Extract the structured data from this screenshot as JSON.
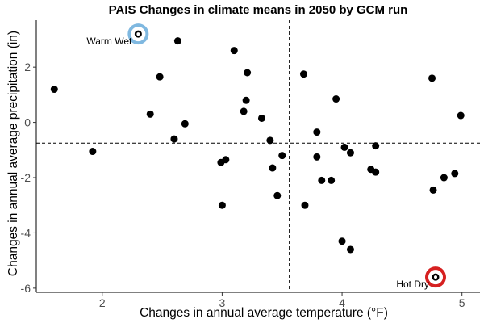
{
  "chart_data": {
    "type": "scatter",
    "title": "PAIS Changes in climate means in 2050 by GCM run",
    "xlabel": "Changes in annual average temperature (°F)",
    "ylabel": "Changes in annual average precipitation (in)",
    "xlim": [
      1.45,
      5.15
    ],
    "ylim": [
      -6.15,
      3.7
    ],
    "xticks": [
      2,
      3,
      4,
      5
    ],
    "yticks": [
      -6,
      -4,
      -2,
      0,
      2
    ],
    "grid": false,
    "legend": "none",
    "reference_lines": {
      "x": 3.56,
      "y": -0.75
    },
    "point_color": "#000000",
    "points": [
      {
        "x": 1.6,
        "y": 1.2
      },
      {
        "x": 1.92,
        "y": -1.05
      },
      {
        "x": 2.3,
        "y": 3.2
      },
      {
        "x": 2.4,
        "y": 0.3
      },
      {
        "x": 2.48,
        "y": 1.65
      },
      {
        "x": 2.6,
        "y": -0.6
      },
      {
        "x": 2.63,
        "y": 2.95
      },
      {
        "x": 2.69,
        "y": -0.05
      },
      {
        "x": 2.99,
        "y": -1.45
      },
      {
        "x": 3.03,
        "y": -1.35
      },
      {
        "x": 3.0,
        "y": -3.0
      },
      {
        "x": 3.1,
        "y": 2.6
      },
      {
        "x": 3.18,
        "y": 0.4
      },
      {
        "x": 3.2,
        "y": 0.8
      },
      {
        "x": 3.21,
        "y": 1.8
      },
      {
        "x": 3.33,
        "y": 0.15
      },
      {
        "x": 3.4,
        "y": -0.65
      },
      {
        "x": 3.42,
        "y": -1.65
      },
      {
        "x": 3.46,
        "y": -2.65
      },
      {
        "x": 3.5,
        "y": -1.2
      },
      {
        "x": 3.68,
        "y": 1.75
      },
      {
        "x": 3.69,
        "y": -3.0
      },
      {
        "x": 3.79,
        "y": -0.35
      },
      {
        "x": 3.79,
        "y": -1.25
      },
      {
        "x": 3.83,
        "y": -2.1
      },
      {
        "x": 3.91,
        "y": -2.1
      },
      {
        "x": 3.95,
        "y": 0.85
      },
      {
        "x": 4.0,
        "y": -4.3
      },
      {
        "x": 4.02,
        "y": -0.9
      },
      {
        "x": 4.07,
        "y": -4.6
      },
      {
        "x": 4.07,
        "y": -1.1
      },
      {
        "x": 4.24,
        "y": -1.7
      },
      {
        "x": 4.28,
        "y": -0.85
      },
      {
        "x": 4.28,
        "y": -1.8
      },
      {
        "x": 4.75,
        "y": 1.6
      },
      {
        "x": 4.76,
        "y": -2.45
      },
      {
        "x": 4.78,
        "y": -5.6
      },
      {
        "x": 4.85,
        "y": -2.0
      },
      {
        "x": 4.94,
        "y": -1.85
      },
      {
        "x": 4.99,
        "y": 0.25
      }
    ],
    "annotations": [
      {
        "label": "Warm Wet",
        "x": 2.3,
        "y": 3.2,
        "ring_color": "#7fb8e0",
        "label_side": "left"
      },
      {
        "label": "Hot Dry",
        "x": 4.78,
        "y": -5.6,
        "ring_color": "#d62020",
        "label_side": "left"
      }
    ]
  }
}
